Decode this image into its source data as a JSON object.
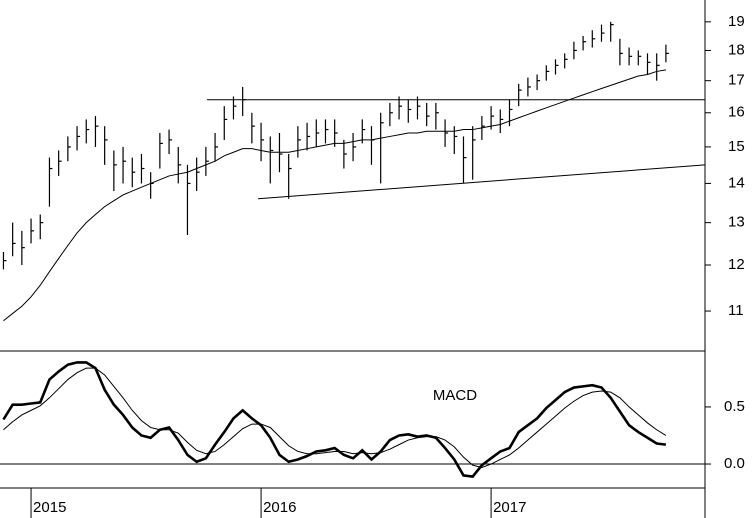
{
  "chart_data": [
    {
      "type": "hlc",
      "x": [
        2014.88,
        2014.92,
        2014.96,
        2015,
        2015.04,
        2015.08,
        2015.12,
        2015.16,
        2015.2,
        2015.24,
        2015.28,
        2015.32,
        2015.36,
        2015.4,
        2015.44,
        2015.48,
        2015.52,
        2015.56,
        2015.6,
        2015.64,
        2015.68,
        2015.72,
        2015.76,
        2015.8,
        2015.84,
        2015.88,
        2015.92,
        2015.96,
        2016,
        2016.04,
        2016.08,
        2016.12,
        2016.16,
        2016.2,
        2016.24,
        2016.28,
        2016.32,
        2016.36,
        2016.4,
        2016.44,
        2016.48,
        2016.52,
        2016.56,
        2016.6,
        2016.64,
        2016.68,
        2016.72,
        2016.76,
        2016.8,
        2016.84,
        2016.88,
        2016.92,
        2016.96,
        2017,
        2017.04,
        2017.08,
        2017.12,
        2017.16,
        2017.2,
        2017.24,
        2017.28,
        2017.32,
        2017.36,
        2017.4,
        2017.44,
        2017.48,
        2017.52,
        2017.56,
        2017.6,
        2017.64,
        2017.68,
        2017.72,
        2017.76
      ],
      "high": [
        12.3,
        13.0,
        12.8,
        13.1,
        13.2,
        14.7,
        14.9,
        15.3,
        15.6,
        15.8,
        15.9,
        15.6,
        14.9,
        15.0,
        14.7,
        14.8,
        14.3,
        15.4,
        15.5,
        15.0,
        14.5,
        14.7,
        15.0,
        15.4,
        16.2,
        16.5,
        16.8,
        16.0,
        15.7,
        15.3,
        15.4,
        14.8,
        15.6,
        15.7,
        15.8,
        15.8,
        15.8,
        15.2,
        15.4,
        15.8,
        15.6,
        16.0,
        16.3,
        16.5,
        16.4,
        16.5,
        16.3,
        16.3,
        15.8,
        15.6,
        15.3,
        15.6,
        15.9,
        16.2,
        16.1,
        16.4,
        16.9,
        17.1,
        17.2,
        17.5,
        17.7,
        17.9,
        18.3,
        18.5,
        18.7,
        18.9,
        19.0,
        18.4,
        18.1,
        18.0,
        17.9,
        17.9,
        18.2
      ],
      "low": [
        11.9,
        12.2,
        12.0,
        12.5,
        12.6,
        13.4,
        14.2,
        14.6,
        14.9,
        15.1,
        15.0,
        14.5,
        13.8,
        14.0,
        13.9,
        14.0,
        13.6,
        14.4,
        14.8,
        14.0,
        12.7,
        13.8,
        14.2,
        14.6,
        15.2,
        15.8,
        15.9,
        15.1,
        14.6,
        14.0,
        14.3,
        13.6,
        14.7,
        14.9,
        15.0,
        15.1,
        15.0,
        14.4,
        14.6,
        15.1,
        14.5,
        14.0,
        15.6,
        15.8,
        15.7,
        15.8,
        15.6,
        15.5,
        15.0,
        14.8,
        14.0,
        14.1,
        15.2,
        15.5,
        15.4,
        15.6,
        16.2,
        16.5,
        16.7,
        17.0,
        17.2,
        17.4,
        17.7,
        18.0,
        18.1,
        18.3,
        18.3,
        17.5,
        17.5,
        17.5,
        17.2,
        17.0,
        17.6
      ],
      "close": [
        12.1,
        12.5,
        12.4,
        12.8,
        13.0,
        14.4,
        14.6,
        15.0,
        15.3,
        15.5,
        15.6,
        15.2,
        14.5,
        14.6,
        14.3,
        14.4,
        14.0,
        15.1,
        15.2,
        14.5,
        14.0,
        14.3,
        14.6,
        15.0,
        15.8,
        16.2,
        16.4,
        15.6,
        15.2,
        14.9,
        14.8,
        14.4,
        15.2,
        15.3,
        15.4,
        15.5,
        15.4,
        14.8,
        15.0,
        15.5,
        15.2,
        15.7,
        16.0,
        16.2,
        16.1,
        16.2,
        15.9,
        16.0,
        15.4,
        15.3,
        14.7,
        15.2,
        15.6,
        15.9,
        15.8,
        16.1,
        16.7,
        16.8,
        17.0,
        17.3,
        17.5,
        17.7,
        18.0,
        18.3,
        18.4,
        18.6,
        18.9,
        17.9,
        17.8,
        17.8,
        17.6,
        17.5,
        17.9
      ],
      "moving_average": [
        10.8,
        10.95,
        11.1,
        11.3,
        11.55,
        11.85,
        12.15,
        12.45,
        12.75,
        13.0,
        13.2,
        13.4,
        13.55,
        13.7,
        13.8,
        13.9,
        14.0,
        14.1,
        14.2,
        14.25,
        14.3,
        14.4,
        14.5,
        14.6,
        14.75,
        14.85,
        14.95,
        14.95,
        14.9,
        14.85,
        14.85,
        14.85,
        14.9,
        14.95,
        15.0,
        15.05,
        15.1,
        15.1,
        15.15,
        15.2,
        15.2,
        15.25,
        15.3,
        15.35,
        15.4,
        15.4,
        15.45,
        15.45,
        15.45,
        15.45,
        15.5,
        15.5,
        15.55,
        15.6,
        15.65,
        15.75,
        15.85,
        15.95,
        16.05,
        16.15,
        16.25,
        16.35,
        16.45,
        16.55,
        16.65,
        16.75,
        16.85,
        16.95,
        17.05,
        17.15,
        17.2,
        17.3,
        17.35
      ],
      "trendlines": [
        {
          "x": [
            2015.765,
            2017.93
          ],
          "values": [
            16.4,
            16.4
          ]
        },
        {
          "x": [
            2015.987,
            2017.93
          ],
          "values": [
            13.6,
            14.5
          ]
        }
      ],
      "color": "#000000",
      "log_scale": true,
      "xlim": [
        2014.865,
        2017.93
      ],
      "xticks": [
        2015,
        2016,
        2017
      ],
      "ylim": [
        10.2,
        19.8
      ],
      "yticks": [
        11,
        12,
        13,
        14,
        15,
        16,
        17,
        18,
        19
      ]
    },
    {
      "type": "line",
      "title": "MACD",
      "macd": [
        0.39,
        0.52,
        0.52,
        0.53,
        0.54,
        0.74,
        0.81,
        0.87,
        0.89,
        0.89,
        0.84,
        0.65,
        0.52,
        0.43,
        0.32,
        0.25,
        0.23,
        0.3,
        0.32,
        0.21,
        0.08,
        0.02,
        0.05,
        0.17,
        0.28,
        0.4,
        0.47,
        0.4,
        0.34,
        0.23,
        0.08,
        0.02,
        0.04,
        0.07,
        0.11,
        0.12,
        0.14,
        0.08,
        0.05,
        0.12,
        0.04,
        0.11,
        0.21,
        0.25,
        0.26,
        0.24,
        0.25,
        0.23,
        0.14,
        0.04,
        -0.1,
        -0.11,
        -0.01,
        0.05,
        0.11,
        0.14,
        0.28,
        0.34,
        0.4,
        0.49,
        0.56,
        0.63,
        0.67,
        0.68,
        0.69,
        0.67,
        0.58,
        0.46,
        0.34,
        0.28,
        0.23,
        0.18,
        0.17
      ],
      "signal": [
        0.3,
        0.37,
        0.43,
        0.47,
        0.51,
        0.58,
        0.66,
        0.74,
        0.8,
        0.84,
        0.84,
        0.78,
        0.68,
        0.58,
        0.47,
        0.38,
        0.32,
        0.3,
        0.3,
        0.27,
        0.19,
        0.12,
        0.09,
        0.11,
        0.17,
        0.24,
        0.31,
        0.35,
        0.35,
        0.32,
        0.24,
        0.16,
        0.11,
        0.09,
        0.09,
        0.1,
        0.11,
        0.11,
        0.09,
        0.1,
        0.09,
        0.1,
        0.13,
        0.17,
        0.21,
        0.23,
        0.24,
        0.24,
        0.21,
        0.15,
        0.06,
        -0.01,
        -0.03,
        0.0,
        0.04,
        0.08,
        0.14,
        0.21,
        0.28,
        0.35,
        0.42,
        0.49,
        0.55,
        0.6,
        0.63,
        0.64,
        0.63,
        0.58,
        0.5,
        0.43,
        0.36,
        0.3,
        0.25
      ],
      "color": "#000000",
      "ylim": [
        -0.21,
        0.99
      ],
      "yticks": [
        {
          "value": 0,
          "label": "0.0"
        },
        {
          "value": 0.5,
          "label": "0.5"
        }
      ]
    }
  ]
}
